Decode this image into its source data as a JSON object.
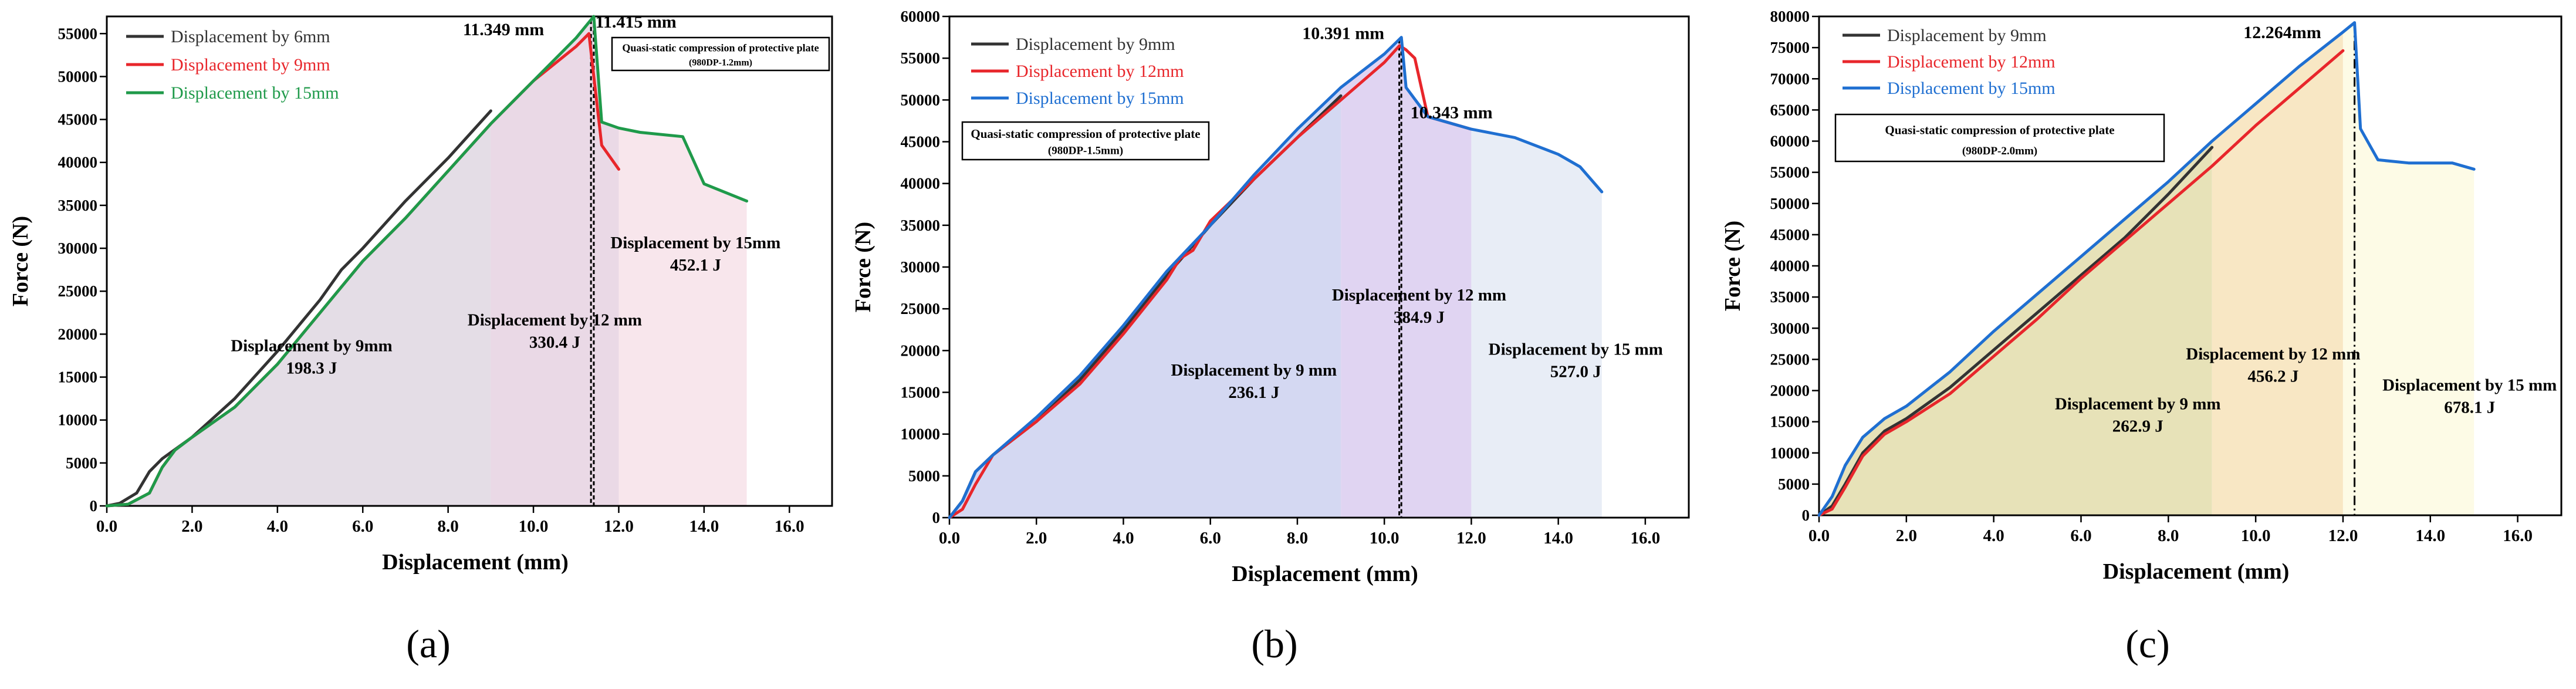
{
  "chart_data": [
    {
      "type": "line",
      "panel_label": "(a)",
      "xlabel": "Displacement (mm)",
      "ylabel": "Force (N)",
      "xlim": [
        0,
        17
      ],
      "ylim": [
        0,
        57000
      ],
      "xticks": [
        0,
        2,
        4,
        6,
        8,
        10,
        12,
        14,
        16
      ],
      "xtick_labels": [
        "0.0",
        "2.0",
        "4.0",
        "6.0",
        "8.0",
        "10.0",
        "12.0",
        "14.0",
        "16.0"
      ],
      "yticks": [
        0,
        5000,
        10000,
        15000,
        20000,
        25000,
        30000,
        35000,
        40000,
        45000,
        50000,
        55000
      ],
      "series": [
        {
          "name": "Displacement by 6mm",
          "color": "#333333",
          "x": [
            0,
            0.3,
            0.7,
            1.0,
            1.3,
            2,
            3,
            4,
            5,
            5.5,
            6,
            7,
            8,
            9
          ],
          "y": [
            0,
            300,
            1500,
            4000,
            5500,
            8000,
            12500,
            18000,
            24000,
            27500,
            30000,
            35500,
            40500,
            46000
          ]
        },
        {
          "name": "Displacement by 9mm",
          "color": "#e8262b",
          "x": [
            0,
            0.5,
            1.0,
            1.3,
            1.6,
            2,
            3,
            4,
            5,
            6,
            7,
            8,
            9,
            10,
            11,
            11.3,
            11.6,
            12
          ],
          "y": [
            0,
            200,
            1500,
            4500,
            6500,
            8000,
            11500,
            16500,
            22500,
            28500,
            33500,
            39000,
            44500,
            49500,
            53500,
            55000,
            42000,
            39200
          ]
        },
        {
          "name": "Displacement by 15mm",
          "color": "#1f9a4a",
          "x": [
            0,
            0.5,
            1.0,
            1.3,
            1.6,
            2,
            3,
            4,
            5,
            6,
            7,
            8,
            9,
            10,
            11,
            11.415,
            11.6,
            12,
            12.5,
            13.5,
            14,
            15
          ],
          "y": [
            0,
            200,
            1500,
            4500,
            6500,
            8000,
            11500,
            16500,
            22500,
            28500,
            33500,
            39000,
            44500,
            49500,
            54500,
            57000,
            44700,
            44000,
            43500,
            43000,
            37500,
            35500
          ]
        }
      ],
      "regions": [
        {
          "from": 0,
          "to": 9,
          "color": "#e4dde6",
          "label": "Displacement by 9mm",
          "energy": "198.3 J"
        },
        {
          "from": 9,
          "to": 12,
          "color": "#ead9e6",
          "label": "Displacement by 12 mm",
          "energy": "330.4 J"
        },
        {
          "from": 12,
          "to": 15,
          "color": "#f8e6ec",
          "label": "Displacement by 15mm",
          "energy": "452.1 J"
        }
      ],
      "peak_lines": [
        {
          "x": 11.349
        },
        {
          "x": 11.415
        }
      ],
      "annotations": [
        "11.349 mm",
        "11.415 mm"
      ],
      "legend_position": "top-left",
      "info_box": [
        "Quasi-static compression of protective plate",
        "(980DP-1.2mm)"
      ]
    },
    {
      "type": "line",
      "panel_label": "(b)",
      "xlabel": "Displacement (mm)",
      "ylabel": "Force (N)",
      "xlim": [
        0,
        17
      ],
      "ylim": [
        0,
        60000
      ],
      "xticks": [
        0,
        2,
        4,
        6,
        8,
        10,
        12,
        14,
        16
      ],
      "xtick_labels": [
        "0.0",
        "2.0",
        "4.0",
        "6.0",
        "8.0",
        "10.0",
        "12.0",
        "14.0",
        "16.0"
      ],
      "yticks": [
        0,
        5000,
        10000,
        15000,
        20000,
        25000,
        30000,
        35000,
        40000,
        45000,
        50000,
        55000,
        60000
      ],
      "series": [
        {
          "name": "Displacement by 9mm",
          "color": "#333333",
          "x": [
            0,
            0.3,
            0.6,
            1.0,
            2,
            3,
            4,
            5,
            5.5,
            6,
            7,
            8,
            9
          ],
          "y": [
            0,
            2000,
            5500,
            7500,
            11500,
            16500,
            22500,
            29000,
            32000,
            35000,
            40500,
            45500,
            50500
          ]
        },
        {
          "name": "Displacement by 12mm",
          "color": "#e8262b",
          "x": [
            0,
            0.3,
            0.6,
            1.0,
            2,
            3,
            4,
            5,
            5.3,
            5.6,
            6,
            7,
            8,
            9,
            10,
            10.35,
            10.5,
            10.7,
            11,
            12
          ],
          "y": [
            0,
            1000,
            4000,
            7500,
            11500,
            16000,
            22000,
            28500,
            31000,
            32000,
            35500,
            40500,
            45500,
            50000,
            54500,
            56500,
            56000,
            55000,
            48000,
            46500
          ]
        },
        {
          "name": "Displacement by 15mm",
          "color": "#1f6fd1",
          "x": [
            0,
            0.3,
            0.6,
            1.0,
            2,
            3,
            4,
            5,
            6,
            7,
            8,
            9,
            10,
            10.391,
            10.5,
            11,
            12,
            13,
            14,
            14.5,
            15
          ],
          "y": [
            0,
            2000,
            5500,
            7500,
            12000,
            17000,
            23000,
            29500,
            35000,
            41000,
            46500,
            51500,
            55500,
            57500,
            51500,
            48000,
            46500,
            45500,
            43500,
            42000,
            39000
          ]
        }
      ],
      "regions": [
        {
          "from": 0,
          "to": 9,
          "color": "#d4d8f2",
          "label": "Displacement by 9 mm",
          "energy": "236.1 J"
        },
        {
          "from": 9,
          "to": 12,
          "color": "#e0d4f2",
          "label": "Displacement by 12 mm",
          "energy": "384.9 J"
        },
        {
          "from": 12,
          "to": 15,
          "color": "#e8edf6",
          "label": "Displacement by 15 mm",
          "energy": "527.0 J"
        }
      ],
      "peak_lines": [
        {
          "x": 10.343
        },
        {
          "x": 10.391
        }
      ],
      "annotations": [
        "10.391 mm",
        "10.343 mm"
      ],
      "legend_position": "top-left",
      "info_box": [
        "Quasi-static compression of protective plate",
        "(980DP-1.5mm)"
      ]
    },
    {
      "type": "line",
      "panel_label": "(c)",
      "xlabel": "Displacement (mm)",
      "ylabel": "Force (N)",
      "xlim": [
        0,
        17
      ],
      "ylim": [
        0,
        80000
      ],
      "xticks": [
        0,
        2,
        4,
        6,
        8,
        10,
        12,
        14,
        16
      ],
      "xtick_labels": [
        "0.0",
        "2.0",
        "4.0",
        "6.0",
        "8.0",
        "10.0",
        "12.0",
        "14.0",
        "16.0"
      ],
      "yticks": [
        0,
        5000,
        10000,
        15000,
        20000,
        25000,
        30000,
        35000,
        40000,
        45000,
        50000,
        55000,
        60000,
        65000,
        70000,
        75000,
        80000
      ],
      "series": [
        {
          "name": "Displacement by 9mm",
          "color": "#333333",
          "x": [
            0,
            0.3,
            0.6,
            1.0,
            1.5,
            2,
            3,
            4,
            5,
            6,
            7,
            8,
            9
          ],
          "y": [
            0,
            1500,
            5000,
            10000,
            13500,
            15500,
            20500,
            26500,
            32500,
            38500,
            44500,
            51500,
            59000
          ]
        },
        {
          "name": "Displacement by 12mm",
          "color": "#e8262b",
          "x": [
            0,
            0.3,
            0.6,
            1.0,
            1.5,
            2,
            3,
            4,
            5,
            6,
            7,
            8,
            9,
            10,
            11,
            12
          ],
          "y": [
            0,
            1000,
            4500,
            9500,
            13000,
            15000,
            19500,
            25500,
            31500,
            38000,
            44000,
            50000,
            56000,
            62500,
            68500,
            74500
          ]
        },
        {
          "name": "Displacement by 15mm",
          "color": "#1f6fd1",
          "x": [
            0,
            0.3,
            0.6,
            1.0,
            1.5,
            2,
            3,
            4,
            5,
            6,
            7,
            8,
            9,
            10,
            11,
            12,
            12.264,
            12.4,
            12.8,
            13.5,
            14.5,
            15
          ],
          "y": [
            0,
            3000,
            8000,
            12500,
            15500,
            17500,
            23000,
            29500,
            35500,
            41500,
            47500,
            53500,
            60000,
            66000,
            72000,
            77500,
            79000,
            62000,
            57000,
            56500,
            56500,
            55500
          ]
        }
      ],
      "regions": [
        {
          "from": 0,
          "to": 9,
          "color": "#e7e2b8",
          "label": "Displacement by 9 mm",
          "energy": "262.9 J"
        },
        {
          "from": 9,
          "to": 12,
          "color": "#f8e7c4",
          "label": "Displacement by 12 mm",
          "energy": "456.2 J"
        },
        {
          "from": 12,
          "to": 15,
          "color": "#fdfbe6",
          "label": "Displacement by 15 mm",
          "energy": "678.1 J"
        }
      ],
      "peak_lines": [
        {
          "x": 12.264
        }
      ],
      "annotations": [
        "12.264mm"
      ],
      "legend_position": "top-left",
      "info_box": [
        "Quasi-static compression of protective plate",
        "(980DP-2.0mm)"
      ]
    }
  ]
}
